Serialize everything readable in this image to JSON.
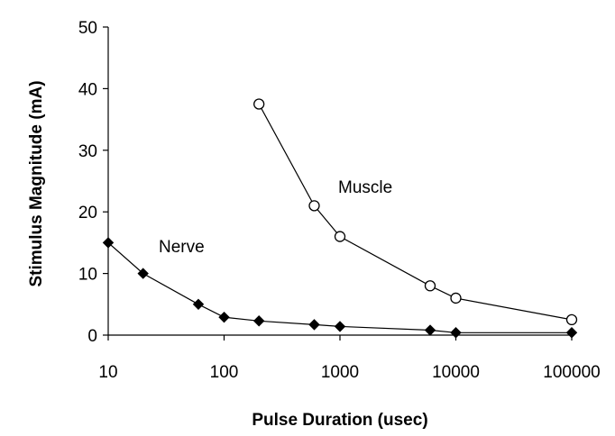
{
  "chart_data": {
    "type": "line",
    "title": "",
    "xlabel": "Pulse Duration (usec)",
    "ylabel": "Stimulus Magnitude (mA)",
    "xscale": "log",
    "xlim": [
      10,
      100000
    ],
    "ylim": [
      0,
      50
    ],
    "x_ticks": [
      "10",
      "100",
      "1000",
      "10000",
      "100000"
    ],
    "y_ticks": [
      "0",
      "10",
      "20",
      "30",
      "40",
      "50"
    ],
    "grid": false,
    "legend": "none",
    "series": [
      {
        "name": "Nerve",
        "marker": "filled-diamond",
        "color": "#000000",
        "x": [
          10,
          20,
          60,
          100,
          200,
          600,
          1000,
          6000,
          10000,
          100000
        ],
        "y": [
          15,
          10,
          5,
          2.9,
          2.3,
          1.7,
          1.4,
          0.8,
          0.4,
          0.4
        ]
      },
      {
        "name": "Muscle",
        "marker": "open-circle",
        "color": "#000000",
        "x": [
          200,
          600,
          1000,
          6000,
          10000,
          100000
        ],
        "y": [
          37.5,
          21,
          16,
          8,
          6,
          2.5
        ]
      }
    ]
  }
}
